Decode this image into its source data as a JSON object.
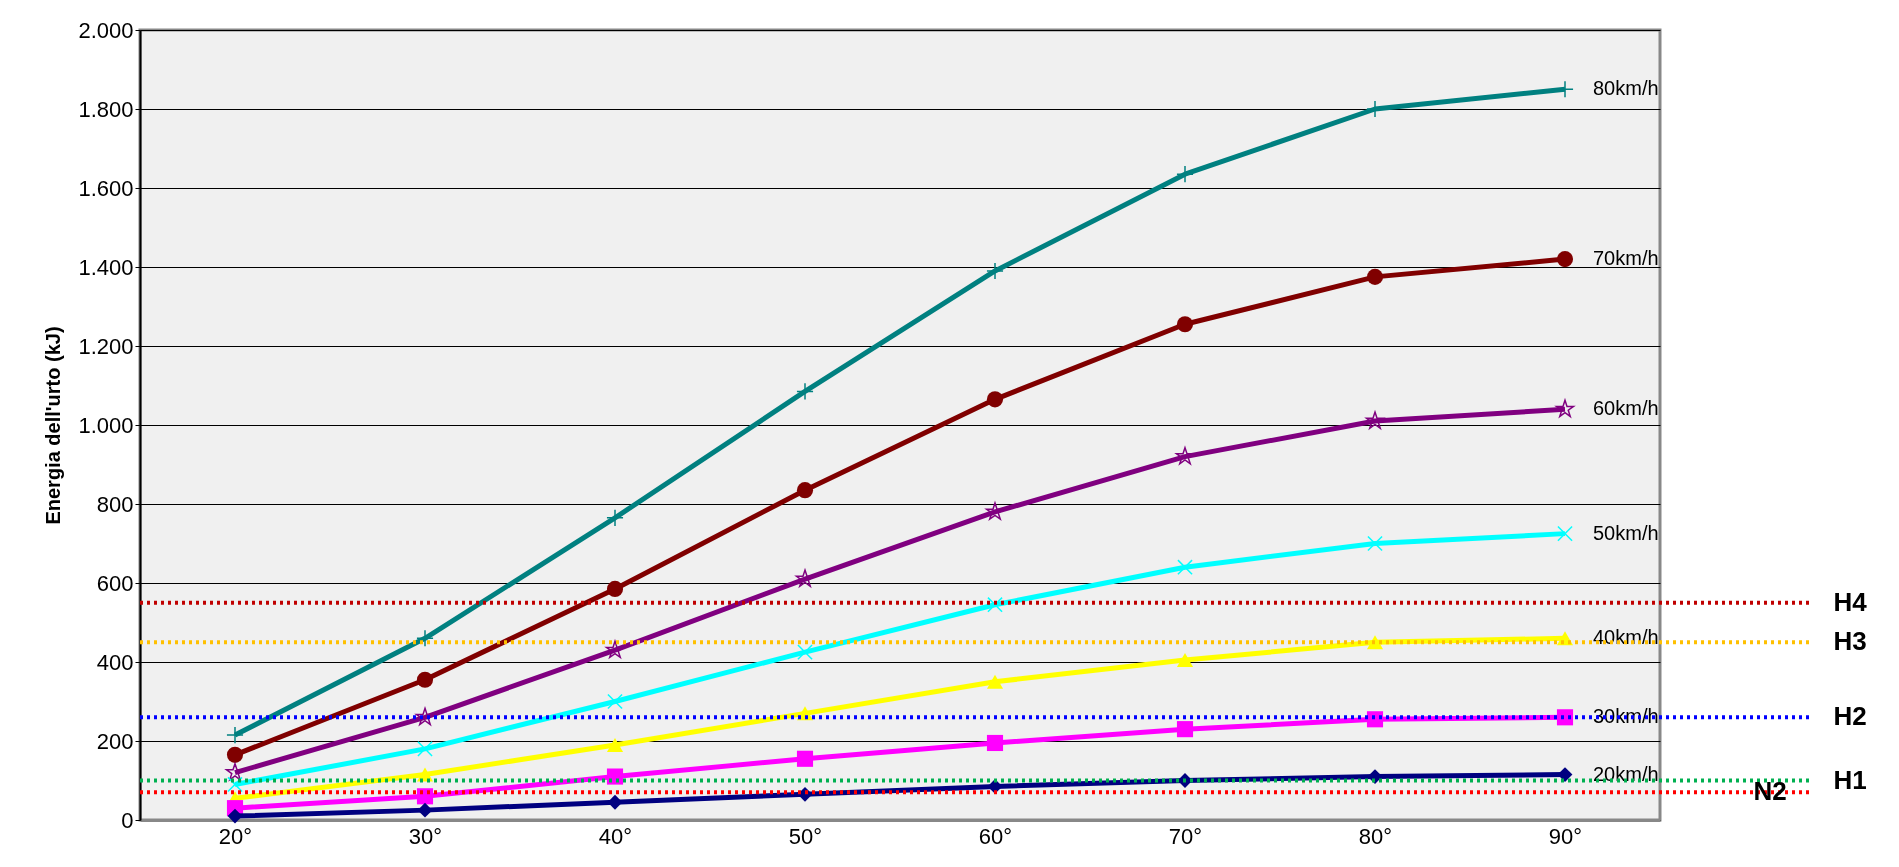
{
  "chart_data": {
    "type": "line",
    "ylabel": "Energia dell'urto (kJ)",
    "categories": [
      "20°",
      "30°",
      "40°",
      "50°",
      "60°",
      "70°",
      "80°",
      "90°"
    ],
    "ylim": [
      0,
      2000
    ],
    "yticks": [
      0,
      200,
      400,
      600,
      800,
      {
        "value": 1000,
        "label": "1.000"
      },
      {
        "value": 1200,
        "label": "1.200"
      },
      {
        "value": 1400,
        "label": "1.400"
      },
      {
        "value": 1600,
        "label": "1.600"
      },
      {
        "value": 1800,
        "label": "1.800"
      },
      {
        "value": 2000,
        "label": "2.000"
      }
    ],
    "grid": "y",
    "series": [
      {
        "name": "80km/h",
        "color": "#008080",
        "marker": "cross",
        "values": [
          215,
          460,
          765,
          1085,
          1390,
          1635,
          1800,
          1850
        ]
      },
      {
        "name": "70km/h",
        "color": "#800000",
        "marker": "circle",
        "values": [
          165,
          355,
          585,
          835,
          1065,
          1255,
          1375,
          1420
        ]
      },
      {
        "name": "60km/h",
        "color": "#800080",
        "marker": "star",
        "values": [
          120,
          260,
          430,
          610,
          780,
          920,
          1010,
          1040
        ]
      },
      {
        "name": "50km/h",
        "color": "#00ffff",
        "marker": "x",
        "values": [
          90,
          180,
          300,
          425,
          545,
          640,
          700,
          725
        ]
      },
      {
        "name": "40km/h",
        "color": "#ffff00",
        "marker": "triangle",
        "values": [
          55,
          115,
          190,
          270,
          350,
          405,
          450,
          460
        ]
      },
      {
        "name": "30km/h",
        "color": "#ff00ff",
        "marker": "square",
        "values": [
          30,
          60,
          110,
          155,
          195,
          230,
          255,
          260
        ]
      },
      {
        "name": "20km/h",
        "color": "#000080",
        "marker": "diamond",
        "values": [
          10,
          25,
          45,
          65,
          85,
          100,
          110,
          115
        ]
      }
    ],
    "ref_lines": [
      {
        "axis": "y",
        "value": 550,
        "label": "H4",
        "color": "#c00000",
        "line_style": "dotted"
      },
      {
        "axis": "y",
        "value": 450,
        "label": "H3",
        "color": "#ffc000",
        "line_style": "dotted"
      },
      {
        "axis": "y",
        "value": 260,
        "label": "H2",
        "color": "#0000ff",
        "line_style": "dotted"
      },
      {
        "axis": "y",
        "value": 100,
        "label": "H1",
        "color": "#00b050",
        "line_style": "dotted"
      },
      {
        "axis": "y",
        "value": 70,
        "label": "N2",
        "color": "#ff0000",
        "line_style": "dotted"
      }
    ]
  }
}
